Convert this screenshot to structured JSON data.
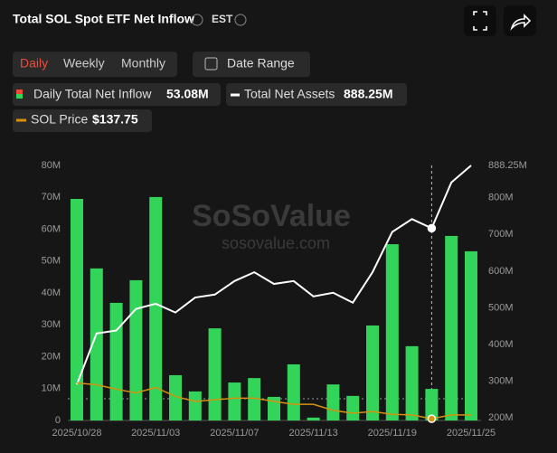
{
  "header": {
    "title": "Total SOL Spot ETF Net Inflow",
    "timezone": "EST"
  },
  "tabs": [
    "Daily",
    "Weekly",
    "Monthly"
  ],
  "date_range": "Date Range",
  "legend": [
    {
      "name": "Daily Total Net Inflow",
      "value": "53.08M"
    },
    {
      "name": "Total Net Assets",
      "value": "888.25M"
    },
    {
      "name": "SOL Price",
      "value": "$137.75"
    }
  ],
  "watermark": {
    "brand": "SoSoValue",
    "site": "sosovalue.com"
  },
  "chart_data": {
    "type": "bar",
    "categories": [
      "2025/10/28",
      null,
      null,
      null,
      "2025/11/03",
      null,
      null,
      null,
      "2025/11/07",
      null,
      null,
      null,
      "2025/11/13",
      null,
      null,
      null,
      "2025/11/19",
      null,
      null,
      null,
      "2025/11/25"
    ],
    "series": [
      {
        "name": "Daily Total Net Inflow",
        "type": "bar",
        "color": "#33d45a",
        "values": [
          69.5,
          47.7,
          36.9,
          44.0,
          70.1,
          14.2,
          9.1,
          28.9,
          11.9,
          13.3,
          7.4,
          17.6,
          0.9,
          11.3,
          7.7,
          29.8,
          55.3,
          23.3,
          9.9,
          57.9,
          53.08
        ]
      },
      {
        "name": "Total Net Assets",
        "type": "line",
        "axis": "y2",
        "color": "#ffffff",
        "values": [
          290.7,
          430,
          438,
          497,
          511,
          487,
          528,
          536,
          573,
          597,
          565,
          573,
          531,
          541,
          514,
          597,
          707,
          742,
          717,
          842,
          888.25
        ]
      },
      {
        "name": "SOL Price",
        "type": "line",
        "axis": "y3",
        "color": "#d4920f",
        "values": [
          195,
          192,
          184,
          177.5,
          187,
          171,
          162,
          165,
          168,
          168,
          162,
          157,
          157,
          146,
          141,
          144,
          139,
          138,
          131,
          138,
          137.75
        ]
      }
    ],
    "ylim": [
      0,
      80
    ],
    "yticks": [
      0,
      {
        "value": 10,
        "label": "10M"
      },
      {
        "value": 20,
        "label": "20M"
      },
      {
        "value": 30,
        "label": "30M"
      },
      {
        "value": 40,
        "label": "40M"
      },
      {
        "value": 50,
        "label": "50M"
      },
      {
        "value": 60,
        "label": "60M"
      },
      {
        "value": 70,
        "label": "70M"
      },
      {
        "value": 80,
        "label": "80M"
      }
    ],
    "y2lim": [
      192.6,
      888.25
    ],
    "y2ticks": [
      {
        "value": 200,
        "label": "200M"
      },
      {
        "value": 300,
        "label": "300M"
      },
      {
        "value": 400,
        "label": "400M"
      },
      {
        "value": 500,
        "label": "500M"
      },
      {
        "value": 600,
        "label": "600M"
      },
      {
        "value": 700,
        "label": "700M"
      },
      {
        "value": 800,
        "label": "800M"
      },
      {
        "value": 888.25,
        "label": "888.25M"
      }
    ],
    "y3lim": [
      128,
      585
    ],
    "highlight_index": 18,
    "grid": false
  }
}
